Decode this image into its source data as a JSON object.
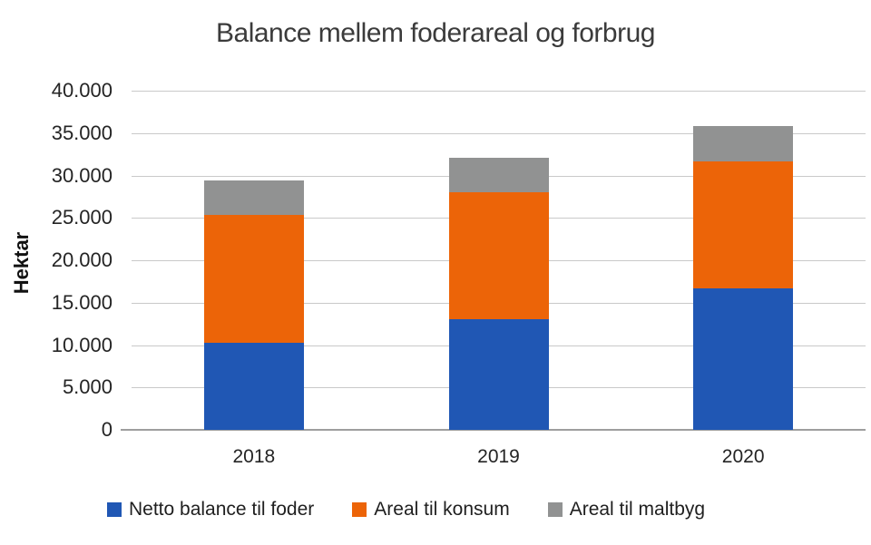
{
  "chart_data": {
    "type": "bar",
    "stacked": true,
    "title": "Balance mellem foderareal og forbrug",
    "ylabel": "Hektar",
    "xlabel": "",
    "categories": [
      "2018",
      "2019",
      "2020"
    ],
    "series": [
      {
        "name": "Netto balance til foder",
        "color": "#2057B4",
        "values": [
          10300,
          13100,
          16700
        ]
      },
      {
        "name": "Areal til konsum",
        "color": "#EC6408",
        "values": [
          15000,
          14900,
          15000
        ]
      },
      {
        "name": "Areal til maltbyg",
        "color": "#919292",
        "values": [
          4100,
          4100,
          4100
        ]
      }
    ],
    "stack_totals": [
      29400,
      32100,
      35800
    ],
    "ylim": [
      0,
      40000
    ],
    "y_tick_step": 5000,
    "y_tick_labels": [
      "0",
      "5.000",
      "10.000",
      "15.000",
      "20.000",
      "25.000",
      "30.000",
      "35.000",
      "40.000"
    ],
    "grid": true,
    "legend_position": "bottom"
  },
  "colors": {
    "background": "#ffffff",
    "gridline": "#c9c9c9",
    "axis_line": "#9e9e9e",
    "title_text": "#3b3b3b",
    "tick_text": "#242424",
    "legend_text": "#1f1f1f"
  }
}
